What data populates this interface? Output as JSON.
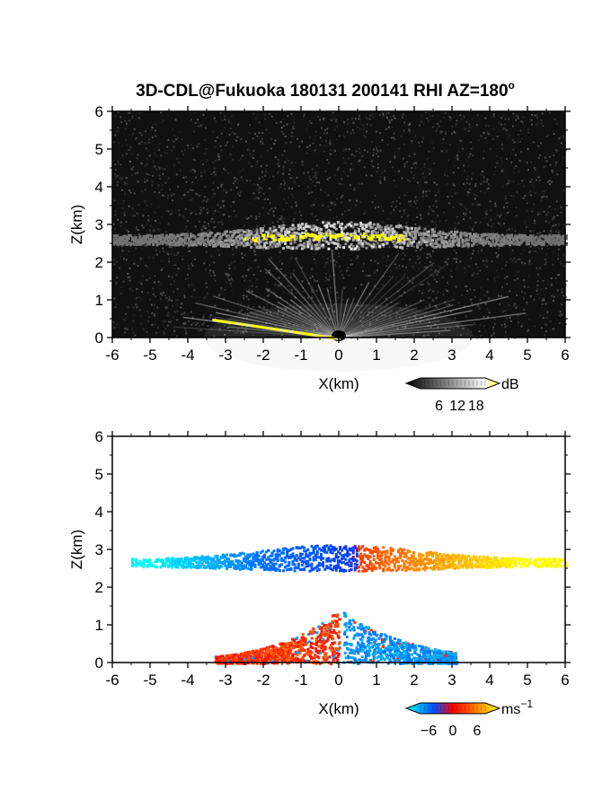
{
  "chart_data": [
    {
      "type": "heatmap",
      "panel": "reflectivity",
      "title": "3D-CDL@Fukuoka 180131 200141 RHI AZ=180",
      "title_superscript": "o",
      "xlabel": "X(km)",
      "ylabel": "Z(km)",
      "xlim": [
        -6,
        6
      ],
      "ylim": [
        0,
        6
      ],
      "xticks": [
        "-6",
        "-5",
        "-4",
        "-3",
        "-2",
        "-1",
        "0",
        "1",
        "2",
        "3",
        "4",
        "5",
        "6"
      ],
      "yticks": [
        "0",
        "1",
        "2",
        "3",
        "4",
        "5",
        "6"
      ],
      "background_color": "#111111",
      "colorbar": {
        "label": "dB",
        "ticks": [
          "6",
          "12",
          "18"
        ],
        "range": [
          0,
          21
        ],
        "colors": [
          "#000000",
          "#ffffff",
          "#ffff00"
        ]
      },
      "features": [
        {
          "name": "cloud layer",
          "x_range": [
            -6,
            6
          ],
          "z_range": [
            2.4,
            3.0
          ],
          "peak_dB": 18
        },
        {
          "name": "near-radar fan",
          "x_range": [
            -3.4,
            3.3
          ],
          "z_range": [
            0,
            1.3
          ],
          "peak_dB": 12
        },
        {
          "name": "ground clutter",
          "x_range": [
            -3.4,
            0
          ],
          "z_range": [
            0,
            0.55
          ],
          "peak_dB": 18
        }
      ]
    },
    {
      "type": "heatmap",
      "panel": "doppler velocity",
      "xlabel": "X(km)",
      "ylabel": "Z(km)",
      "xlim": [
        -6,
        6
      ],
      "ylim": [
        0,
        6
      ],
      "xticks": [
        "-6",
        "-5",
        "-4",
        "-3",
        "-2",
        "-1",
        "0",
        "1",
        "2",
        "3",
        "4",
        "5",
        "6"
      ],
      "yticks": [
        "0",
        "1",
        "2",
        "3",
        "4",
        "5",
        "6"
      ],
      "background_color": "#ffffff",
      "colorbar": {
        "label": "ms",
        "label_superscript": "−1",
        "ticks": [
          "−6",
          "0",
          "6"
        ],
        "range": [
          -8,
          8
        ],
        "colors": [
          "#00ffff",
          "#0050ff",
          "#ff0000",
          "#ff8000",
          "#ffff00"
        ]
      },
      "features": [
        {
          "name": "cloud layer",
          "x_range": [
            -5.5,
            6
          ],
          "z_range": [
            2.45,
            3.2
          ],
          "velocity_ms": [
            -8,
            8
          ]
        },
        {
          "name": "lower echo left",
          "x_range": [
            -3.4,
            0.1
          ],
          "z_range": [
            0,
            1.5
          ],
          "velocity_ms": [
            0,
            3
          ]
        },
        {
          "name": "lower echo right",
          "x_range": [
            0.1,
            3.1
          ],
          "z_range": [
            0,
            1.5
          ],
          "velocity_ms": [
            -6,
            -3
          ]
        }
      ]
    }
  ]
}
